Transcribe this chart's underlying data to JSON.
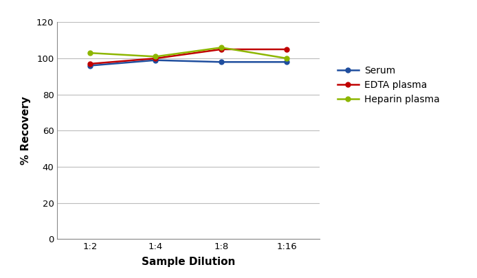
{
  "x_labels": [
    "1:2",
    "1:4",
    "1:8",
    "1:16"
  ],
  "x_values": [
    1,
    2,
    3,
    4
  ],
  "serum": [
    96,
    99,
    98,
    98
  ],
  "edta_plasma": [
    97,
    100,
    105,
    105
  ],
  "heparin_plasma": [
    103,
    101,
    106,
    100
  ],
  "serum_color": "#1f4e9e",
  "edta_color": "#c00000",
  "heparin_color": "#8db600",
  "ylabel": "% Recovery",
  "xlabel": "Sample Dilution",
  "ylim": [
    0,
    120
  ],
  "yticks": [
    0,
    20,
    40,
    60,
    80,
    100,
    120
  ],
  "legend_labels": [
    "Serum",
    "EDTA plasma",
    "Heparin plasma"
  ],
  "marker": "o",
  "linewidth": 1.8,
  "markersize": 5,
  "background_color": "#ffffff",
  "grid_color": "#bbbbbb"
}
